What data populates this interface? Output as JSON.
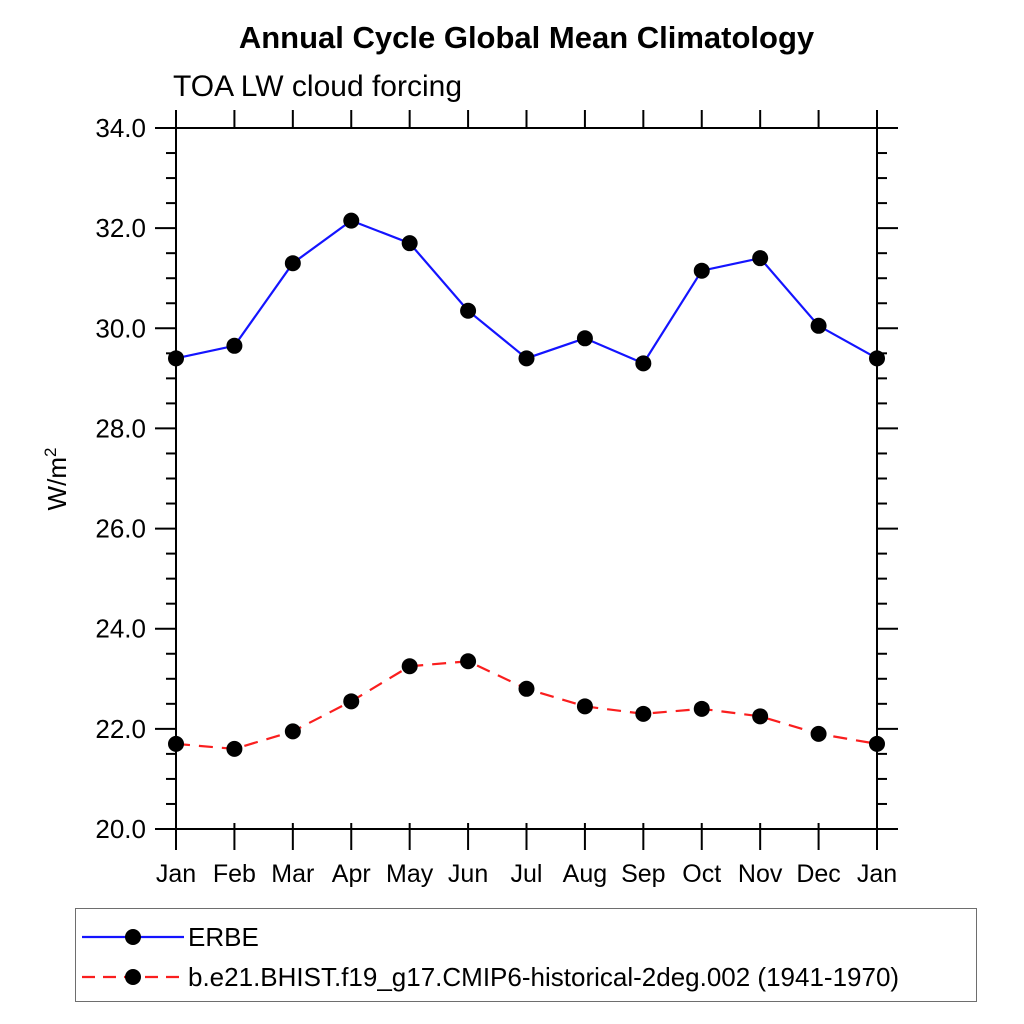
{
  "title": "Annual Cycle Global Mean Climatology",
  "subtitle": "TOA LW cloud forcing",
  "ylabel_base": "W/m",
  "ylabel_exponent": "2",
  "colors": {
    "erbe_line": "#1414ff",
    "model_line": "#fa1e1e",
    "marker": "#000000",
    "axis": "#000000",
    "legend_border": "#6e6e6e"
  },
  "chart_data": {
    "type": "line",
    "title": "Annual Cycle Global Mean Climatology",
    "subtitle": "TOA LW cloud forcing",
    "xlabel": "",
    "ylabel": "W/m^2",
    "categories": [
      "Jan",
      "Feb",
      "Mar",
      "Apr",
      "May",
      "Jun",
      "Jul",
      "Aug",
      "Sep",
      "Oct",
      "Nov",
      "Dec",
      "Jan"
    ],
    "ylim": [
      20.0,
      34.0
    ],
    "y_major_ticks": [
      20.0,
      22.0,
      24.0,
      26.0,
      28.0,
      30.0,
      32.0,
      34.0
    ],
    "y_tick_labels": [
      "20.0",
      "22.0",
      "24.0",
      "26.0",
      "28.0",
      "30.0",
      "32.0",
      "34.0"
    ],
    "y_minor_step": 0.5,
    "grid": false,
    "legend_position": "bottom",
    "series": [
      {
        "name": "ERBE",
        "color": "#1414ff",
        "dash": "solid",
        "marker": "circle",
        "marker_color": "#000000",
        "values": [
          29.4,
          29.65,
          31.3,
          32.15,
          31.7,
          30.35,
          29.4,
          29.8,
          29.3,
          31.15,
          31.4,
          30.05,
          29.4
        ]
      },
      {
        "name": "b.e21.BHIST.f19_g17.CMIP6-historical-2deg.002 (1941-1970)",
        "color": "#fa1e1e",
        "dash": "dashed",
        "marker": "circle",
        "marker_color": "#000000",
        "values": [
          21.7,
          21.6,
          21.95,
          22.55,
          23.25,
          23.35,
          22.8,
          22.45,
          22.3,
          22.4,
          22.25,
          21.9,
          21.7
        ]
      }
    ]
  }
}
